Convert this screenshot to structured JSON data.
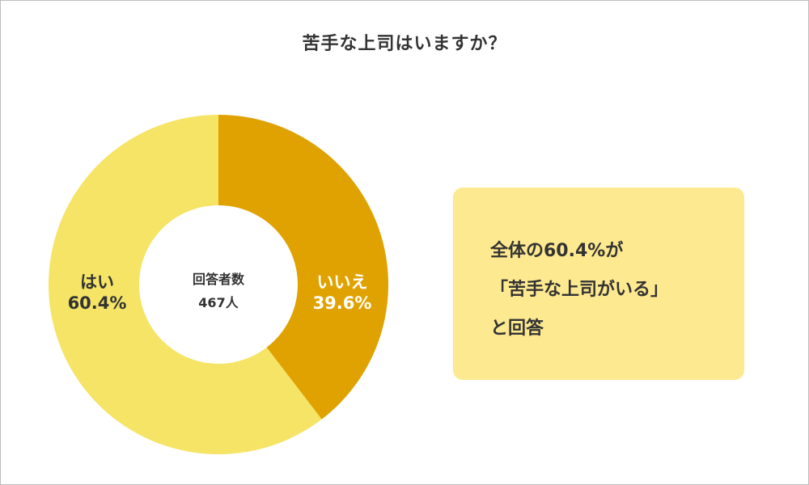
{
  "title": "苦手な上司はいますか？",
  "chart_data": {
    "type": "pie",
    "donut": true,
    "slices": [
      {
        "label": "いいえ",
        "value": 39.6,
        "value_label": "39.6%",
        "color": "#e0a200"
      },
      {
        "label": "はい",
        "value": 60.4,
        "value_label": "60.4%",
        "color": "#f5e466"
      }
    ],
    "center_text": {
      "line1": "回答者数",
      "line2": "467人"
    }
  },
  "callout": {
    "line1": "全体の60.4%が",
    "line2": "「苦手な上司がいる」",
    "line3": "と回答"
  }
}
